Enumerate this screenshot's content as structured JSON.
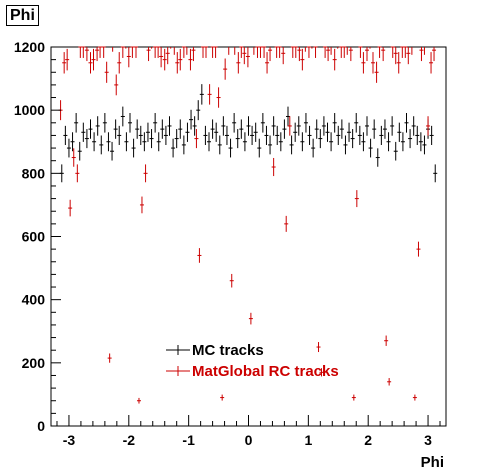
{
  "chart_data": {
    "type": "scatter",
    "title": "Phi",
    "xlabel": "Phi",
    "ylabel": "",
    "xlim": [
      -3.3,
      3.3
    ],
    "ylim": [
      0,
      1200
    ],
    "xticks": [
      -3,
      -2,
      -1,
      0,
      1,
      2,
      3
    ],
    "yticks": [
      0,
      200,
      400,
      600,
      800,
      1000,
      1200
    ],
    "grid": false,
    "legend_position": "bottom-center",
    "series": [
      {
        "name": "MC tracks",
        "color": "#000000",
        "x": [
          -3.12,
          -3.06,
          -3.0,
          -2.94,
          -2.88,
          -2.82,
          -2.76,
          -2.7,
          -2.64,
          -2.58,
          -2.52,
          -2.46,
          -2.4,
          -2.34,
          -2.28,
          -2.22,
          -2.16,
          -2.1,
          -2.04,
          -1.98,
          -1.92,
          -1.86,
          -1.8,
          -1.74,
          -1.68,
          -1.62,
          -1.56,
          -1.5,
          -1.44,
          -1.38,
          -1.32,
          -1.26,
          -1.2,
          -1.14,
          -1.08,
          -1.02,
          -0.96,
          -0.9,
          -0.84,
          -0.78,
          -0.72,
          -0.66,
          -0.6,
          -0.54,
          -0.48,
          -0.42,
          -0.36,
          -0.3,
          -0.24,
          -0.18,
          -0.12,
          -0.06,
          0.0,
          0.06,
          0.12,
          0.18,
          0.24,
          0.3,
          0.36,
          0.42,
          0.48,
          0.54,
          0.6,
          0.66,
          0.72,
          0.78,
          0.84,
          0.9,
          0.96,
          1.02,
          1.08,
          1.14,
          1.2,
          1.26,
          1.32,
          1.38,
          1.44,
          1.5,
          1.56,
          1.62,
          1.68,
          1.74,
          1.8,
          1.86,
          1.92,
          1.98,
          2.04,
          2.1,
          2.16,
          2.22,
          2.28,
          2.34,
          2.4,
          2.46,
          2.52,
          2.58,
          2.64,
          2.7,
          2.76,
          2.82,
          2.88,
          2.94,
          3.0,
          3.06,
          3.12
        ],
        "y": [
          800,
          920,
          880,
          900,
          960,
          870,
          930,
          910,
          940,
          900,
          950,
          890,
          960,
          900,
          870,
          940,
          920,
          980,
          900,
          960,
          880,
          940,
          920,
          900,
          930,
          910,
          960,
          900,
          940,
          920,
          950,
          880,
          910,
          940,
          890,
          930,
          970,
          950,
          1000,
          1050,
          920,
          900,
          940,
          930,
          890,
          950,
          920,
          880,
          960,
          910,
          940,
          900,
          950,
          920,
          930,
          880,
          960,
          920,
          890,
          950,
          920,
          900,
          940,
          980,
          890,
          930,
          950,
          900,
          960,
          920,
          880,
          940,
          910,
          950,
          930,
          900,
          960,
          920,
          940,
          890,
          930,
          910,
          960,
          920,
          900,
          950,
          880,
          940,
          850,
          920,
          940,
          900,
          950,
          870,
          930,
          900,
          960,
          910,
          950,
          920,
          900,
          890,
          940,
          920,
          800
        ]
      },
      {
        "name": "MatGlobal RC tracks",
        "color": "#cc0000",
        "x": [
          -3.14,
          -3.08,
          -3.03,
          -2.98,
          -2.92,
          -2.86,
          -2.81,
          -2.76,
          -2.7,
          -2.64,
          -2.59,
          -2.53,
          -2.48,
          -2.42,
          -2.37,
          -2.32,
          -2.27,
          -2.21,
          -2.16,
          -2.1,
          -2.05,
          -2.0,
          -1.94,
          -1.88,
          -1.83,
          -1.78,
          -1.72,
          -1.67,
          -1.62,
          -1.56,
          -1.51,
          -1.46,
          -1.4,
          -1.35,
          -1.3,
          -1.24,
          -1.19,
          -1.14,
          -1.08,
          -1.03,
          -0.97,
          -0.92,
          -0.87,
          -0.82,
          -0.76,
          -0.71,
          -0.65,
          -0.6,
          -0.55,
          -0.5,
          -0.44,
          -0.39,
          -0.33,
          -0.28,
          -0.23,
          -0.17,
          -0.12,
          -0.07,
          -0.01,
          0.04,
          0.09,
          0.15,
          0.2,
          0.26,
          0.31,
          0.36,
          0.42,
          0.47,
          0.52,
          0.58,
          0.63,
          0.69,
          0.74,
          0.79,
          0.85,
          0.9,
          0.95,
          1.01,
          1.06,
          1.12,
          1.17,
          1.22,
          1.28,
          1.33,
          1.38,
          1.44,
          1.49,
          1.55,
          1.6,
          1.65,
          1.71,
          1.76,
          1.81,
          1.87,
          1.92,
          1.98,
          2.03,
          2.08,
          2.14,
          2.19,
          2.25,
          2.3,
          2.35,
          2.41,
          2.46,
          2.51,
          2.57,
          2.62,
          2.67,
          2.73,
          2.78,
          2.84,
          2.89,
          2.94,
          3.0,
          3.05,
          3.1
        ],
        "y": [
          1000,
          1150,
          1160,
          690,
          850,
          800,
          1200,
          1200,
          1190,
          1150,
          1160,
          1190,
          1200,
          1200,
          1120,
          215,
          1220,
          1080,
          1150,
          1200,
          1230,
          1170,
          1200,
          1200,
          80,
          700,
          800,
          1190,
          1230,
          1200,
          1200,
          1170,
          1160,
          1180,
          1230,
          1210,
          1150,
          1160,
          1200,
          1210,
          1160,
          1190,
          910,
          540,
          1200,
          1200,
          1050,
          1200,
          1200,
          1040,
          90,
          1130,
          1210,
          460,
          1210,
          1150,
          1200,
          1180,
          1170,
          340,
          1210,
          1200,
          1200,
          1200,
          1150,
          1190,
          820,
          1200,
          1200,
          1180,
          640,
          950,
          1200,
          1200,
          1190,
          1160,
          1220,
          1200,
          1230,
          1200,
          250,
          170,
          1200,
          1190,
          1210,
          1160,
          1230,
          1200,
          1200,
          1210,
          1190,
          90,
          720,
          1200,
          1150,
          1190,
          1230,
          1150,
          1120,
          1200,
          1190,
          270,
          140,
          1200,
          1180,
          1150,
          1200,
          1200,
          1180,
          1210,
          90,
          560,
          1190,
          1210,
          950,
          1150,
          1190
        ]
      }
    ]
  }
}
